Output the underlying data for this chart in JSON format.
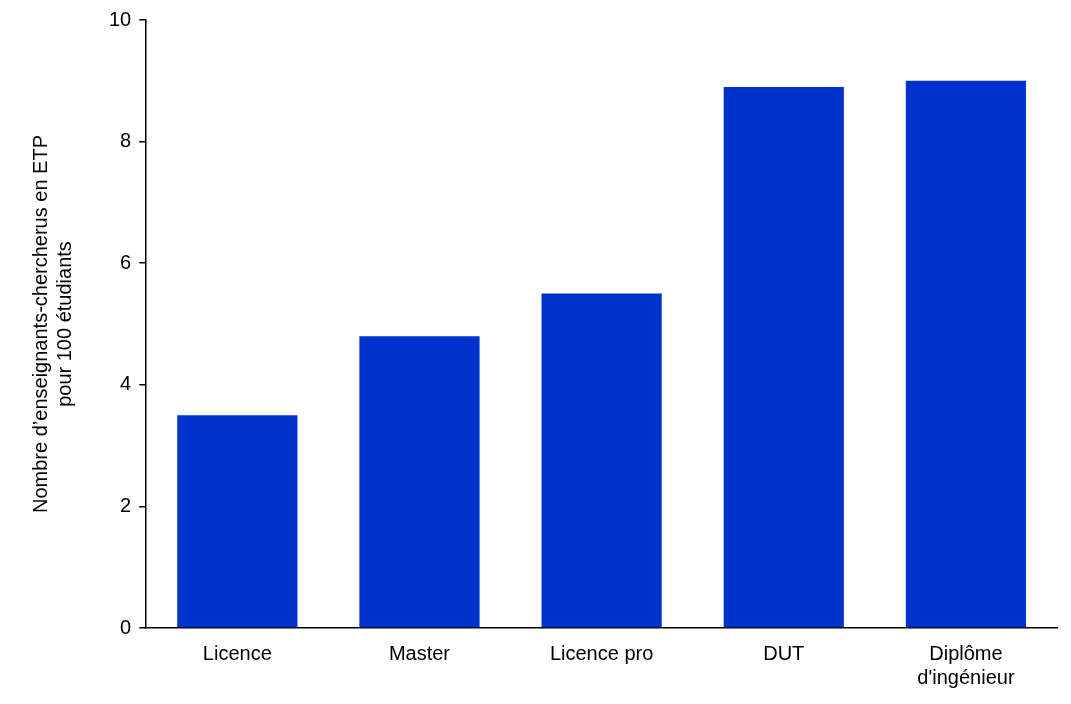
{
  "chart_data": {
    "type": "bar",
    "ylabel": "Nombre d’enseignants-chercherus en ETP pour 100 étudiants",
    "categories": [
      "Licence",
      "Master",
      "Licence pro",
      "DUT",
      "Diplôme d'ingénieur"
    ],
    "values": [
      3.5,
      4.8,
      5.5,
      8.9,
      9.0
    ],
    "color": "#0033cc",
    "ylim": [
      0,
      10
    ],
    "yticks": [
      0,
      2,
      4,
      6,
      8,
      10
    ],
    "grid": false,
    "legend": false
  }
}
